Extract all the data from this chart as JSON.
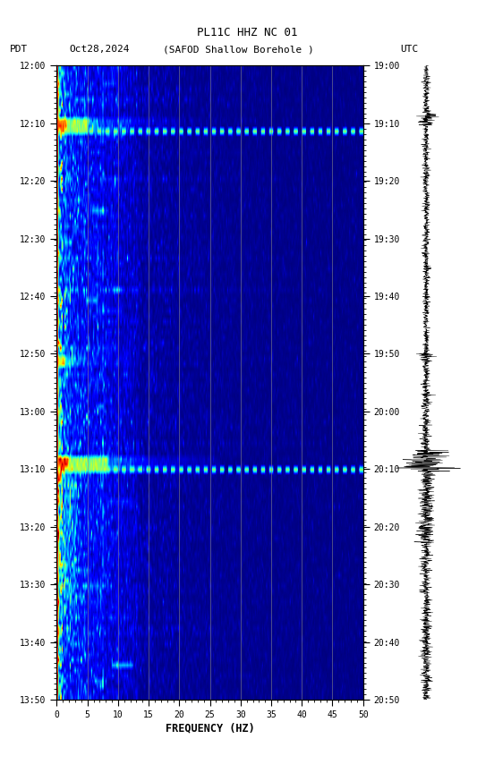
{
  "title_line1": "PL11C HHZ NC 01",
  "title_line2_left": "PDT",
  "title_line2_date": "Oct28,2024",
  "title_line2_station": "(SAFOD Shallow Borehole )",
  "title_line2_right": "UTC",
  "xlabel": "FREQUENCY (HZ)",
  "freq_min": 0,
  "freq_max": 50,
  "time_labels_left": [
    "12:00",
    "12:10",
    "12:20",
    "12:30",
    "12:40",
    "12:50",
    "13:00",
    "13:10",
    "13:20",
    "13:30",
    "13:40",
    "13:50"
  ],
  "time_labels_right": [
    "19:00",
    "19:10",
    "19:20",
    "19:30",
    "19:40",
    "19:50",
    "20:00",
    "20:10",
    "20:20",
    "20:30",
    "20:40",
    "20:50"
  ],
  "n_times": 120,
  "n_freqs": 300,
  "vertical_lines_freq": [
    5,
    10,
    15,
    20,
    25,
    30,
    35,
    40,
    45
  ],
  "vertical_lines_color": "#888888",
  "seed": 12345,
  "dotted_row_1": 12,
  "dotted_row_2": 76,
  "event_rows_1": [
    10,
    11,
    12
  ],
  "event_rows_2": [
    55,
    56
  ],
  "event_rows_3": [
    74,
    75,
    76
  ]
}
